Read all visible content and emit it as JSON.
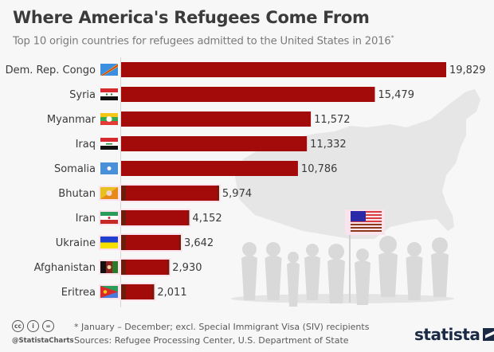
{
  "header": {
    "title": "Where America's Refugees Come From",
    "subtitle": "Top 10 origin countries for refugees admitted to the United States in 2016",
    "subtitle_mark": "*"
  },
  "chart_data": {
    "type": "bar",
    "orientation": "horizontal",
    "title": "Where America's Refugees Come From",
    "subtitle": "Top 10 origin countries for refugees admitted to the United States in 2016*",
    "xlabel": "",
    "ylabel": "",
    "categories": [
      "Dem. Rep. Congo",
      "Syria",
      "Myanmar",
      "Iraq",
      "Somalia",
      "Bhutan",
      "Iran",
      "Ukraine",
      "Afghanistan",
      "Eritrea"
    ],
    "values": [
      19829,
      15479,
      11572,
      11332,
      10786,
      5974,
      4152,
      3642,
      2930,
      2011
    ],
    "value_labels": [
      "19,829",
      "15,479",
      "11,572",
      "11,332",
      "10,786",
      "5,974",
      "4,152",
      "3,642",
      "2,930",
      "2,011"
    ],
    "flags": [
      "congo-flag",
      "syria-flag",
      "myanmar-flag",
      "iraq-flag",
      "somalia-flag",
      "bhutan-flag",
      "iran-flag",
      "ukraine-flag",
      "afghanistan-flag",
      "eritrea-flag"
    ],
    "xlim": [
      0,
      19829
    ],
    "grid": false,
    "legend": "none",
    "bar_color": "#a30a0a",
    "bar_edge_dark": "#6b1d0c"
  },
  "footer": {
    "note": "* January – December; excl. Special Immigrant Visa (SIV) recipients",
    "source": "Sources: Refugee Processing Center, U.S. Department of State",
    "handle": "@StatistaCharts",
    "cc_icons": [
      "cc",
      "i",
      "="
    ],
    "logo": "statista"
  }
}
